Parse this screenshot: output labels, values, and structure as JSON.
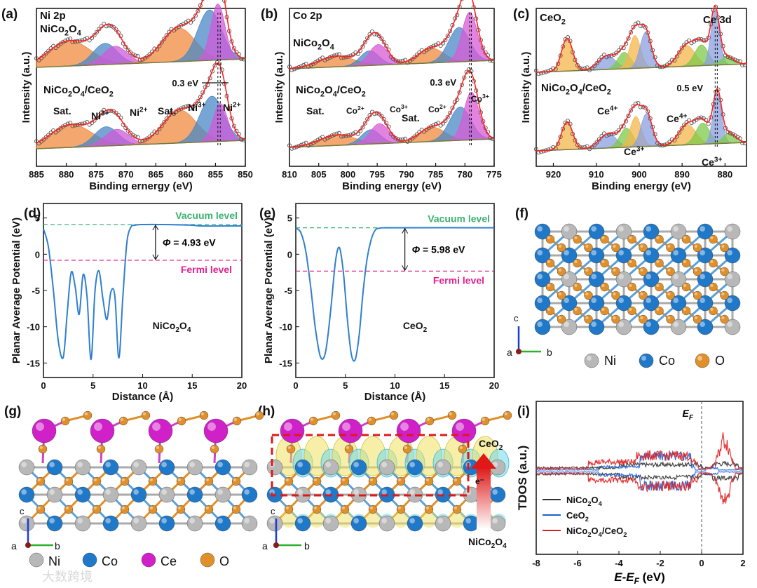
{
  "panel_labels": {
    "a": "(a)",
    "b": "(b)",
    "c": "(c)",
    "d": "(d)",
    "e": "(e)",
    "f": "(f)",
    "g": "(g)",
    "h": "(h)",
    "i": "(i)"
  },
  "colors": {
    "sat": "#f08a3e",
    "ni3": "#4a88c7",
    "ni2": "#d05ad8",
    "co3": "#d85ad5",
    "co2": "#4a88c7",
    "ce3": "#7ec94a",
    "ce4a": "#f3b64b",
    "ce4b": "#8aa0e0",
    "envelope": "#ff2020",
    "baseline": "#888888",
    "vacuum": "#3cb371",
    "fermi": "#e0208f",
    "potential": "#2f7fd0",
    "atom_ni": "#b8b8b8",
    "atom_co": "#1f78c8",
    "atom_o": "#e0902a",
    "atom_ce": "#d020c8",
    "tdos_ni": "#333333",
    "tdos_ce": "#2060d0",
    "tdos_het": "#e02020"
  },
  "chart_data": [
    {
      "id": "a",
      "type": "line",
      "header": "Ni 2p",
      "sample_top": "NiCo2O4",
      "sample_bottom": "NiCo2O4/CeO2",
      "xlabel": "Binding ernergy (eV)",
      "ylabel": "Intensity (a.u.)",
      "xlim": [
        885,
        850
      ],
      "ticks": [
        885,
        880,
        875,
        870,
        865,
        860,
        855,
        850
      ],
      "shift": "0.3 eV",
      "peaks_top": [
        {
          "pos": 879.5,
          "h": 0.45,
          "w": 3.5,
          "role": "sat"
        },
        {
          "pos": 873.5,
          "h": 0.38,
          "w": 2.0,
          "role": "ni3"
        },
        {
          "pos": 871.8,
          "h": 0.32,
          "w": 2.0,
          "role": "ni2"
        },
        {
          "pos": 861.2,
          "h": 0.6,
          "w": 2.8,
          "role": "sat"
        },
        {
          "pos": 856.0,
          "h": 0.9,
          "w": 2.0,
          "role": "ni3"
        },
        {
          "pos": 854.6,
          "h": 1.0,
          "w": 1.2,
          "role": "ni2"
        }
      ],
      "peaks_bottom": [
        {
          "pos": 879.2,
          "h": 0.45,
          "w": 3.5,
          "role": "sat"
        },
        {
          "pos": 873.3,
          "h": 0.38,
          "w": 2.0,
          "role": "ni3"
        },
        {
          "pos": 871.5,
          "h": 0.32,
          "w": 2.0,
          "role": "ni2"
        },
        {
          "pos": 861.0,
          "h": 0.65,
          "w": 2.8,
          "role": "sat"
        },
        {
          "pos": 855.6,
          "h": 0.9,
          "w": 2.0,
          "role": "ni3"
        },
        {
          "pos": 854.2,
          "h": 0.75,
          "w": 1.2,
          "role": "ni2"
        }
      ],
      "annotations": [
        {
          "text": "Sat.",
          "x": 879
        },
        {
          "text": "Ni3+",
          "x": 874
        },
        {
          "text": "Ni2+",
          "x": 869.5
        },
        {
          "text": "Sat.",
          "x": 862.5
        },
        {
          "text": "Ni3+",
          "x": 856.5
        },
        {
          "text": "Ni2+",
          "x": 853
        }
      ]
    },
    {
      "id": "b",
      "type": "line",
      "header": "Co 2p",
      "sample_top": "NiCo2O4",
      "sample_bottom": "NiCo2O4/CeO2",
      "xlabel": "Binding energy (eV)",
      "ylabel": "Intensity (a.u.)",
      "xlim": [
        810,
        775
      ],
      "ticks": [
        810,
        805,
        800,
        795,
        790,
        785,
        780,
        775
      ],
      "shift": "0.3 eV",
      "peaks_top": [
        {
          "pos": 802.0,
          "h": 0.22,
          "w": 3.0,
          "role": "sat"
        },
        {
          "pos": 796.3,
          "h": 0.3,
          "w": 1.6,
          "role": "co2"
        },
        {
          "pos": 794.8,
          "h": 0.42,
          "w": 1.6,
          "role": "co3"
        },
        {
          "pos": 785.8,
          "h": 0.3,
          "w": 2.2,
          "role": "sat"
        },
        {
          "pos": 781.0,
          "h": 0.7,
          "w": 1.8,
          "role": "co2"
        },
        {
          "pos": 779.2,
          "h": 1.0,
          "w": 1.3,
          "role": "co3"
        }
      ],
      "peaks_bottom": [
        {
          "pos": 801.8,
          "h": 0.22,
          "w": 3.0,
          "role": "sat"
        },
        {
          "pos": 796.1,
          "h": 0.3,
          "w": 1.6,
          "role": "co2"
        },
        {
          "pos": 794.6,
          "h": 0.42,
          "w": 1.6,
          "role": "co3"
        },
        {
          "pos": 785.6,
          "h": 0.3,
          "w": 2.2,
          "role": "sat"
        },
        {
          "pos": 780.8,
          "h": 0.7,
          "w": 1.8,
          "role": "co2"
        },
        {
          "pos": 778.9,
          "h": 1.0,
          "w": 1.3,
          "role": "co3"
        }
      ],
      "annotations": [
        {
          "text": "Sat.",
          "x": 804
        },
        {
          "text": "Co2+",
          "x": 796.5
        },
        {
          "text": "Co3+",
          "x": 791
        },
        {
          "text": "Sat.",
          "x": 786.5
        },
        {
          "text": "Co2+",
          "x": 782
        },
        {
          "text": "Co3+",
          "x": 776.5
        }
      ]
    },
    {
      "id": "c",
      "type": "line",
      "header": "CeO2",
      "header2": "Ce 3d",
      "sample_bottom": "NiCo2O4/CeO2",
      "xlabel": "Binding energy (eV)",
      "ylabel": "Intensity (a.u.)",
      "xlim": [
        924,
        875
      ],
      "ticks": [
        920,
        910,
        900,
        890,
        880
      ],
      "shift": "0.5 eV",
      "peaks_top": [
        {
          "pos": 916.8,
          "h": 0.6,
          "w": 1.3,
          "role": "ce4a"
        },
        {
          "pos": 907.5,
          "h": 0.25,
          "w": 2.0,
          "role": "ce4b"
        },
        {
          "pos": 903.5,
          "h": 0.3,
          "w": 1.5,
          "role": "ce3"
        },
        {
          "pos": 901.0,
          "h": 0.6,
          "w": 1.3,
          "role": "ce4a"
        },
        {
          "pos": 898.5,
          "h": 0.65,
          "w": 1.3,
          "role": "ce4b"
        },
        {
          "pos": 889.0,
          "h": 0.38,
          "w": 2.0,
          "role": "ce4a"
        },
        {
          "pos": 885.5,
          "h": 0.38,
          "w": 1.6,
          "role": "ce3"
        },
        {
          "pos": 882.3,
          "h": 1.0,
          "w": 1.0,
          "role": "ce4b"
        },
        {
          "pos": 879.5,
          "h": 0.15,
          "w": 1.5,
          "role": "ce3"
        }
      ],
      "peaks_bottom": [
        {
          "pos": 916.8,
          "h": 0.55,
          "w": 1.3,
          "role": "ce4a"
        },
        {
          "pos": 907.3,
          "h": 0.28,
          "w": 2.0,
          "role": "ce4b"
        },
        {
          "pos": 903.0,
          "h": 0.38,
          "w": 1.5,
          "role": "ce3"
        },
        {
          "pos": 900.8,
          "h": 0.6,
          "w": 1.3,
          "role": "ce4a"
        },
        {
          "pos": 898.3,
          "h": 0.65,
          "w": 1.3,
          "role": "ce4b"
        },
        {
          "pos": 888.8,
          "h": 0.4,
          "w": 2.0,
          "role": "ce4a"
        },
        {
          "pos": 885.2,
          "h": 0.42,
          "w": 1.6,
          "role": "ce3"
        },
        {
          "pos": 881.8,
          "h": 1.0,
          "w": 1.0,
          "role": "ce4b"
        },
        {
          "pos": 879.0,
          "h": 0.2,
          "w": 1.5,
          "role": "ce3"
        }
      ],
      "annotations": [
        {
          "text": "Ce4+",
          "x": 906
        },
        {
          "text": "Ce3+",
          "x": 902
        },
        {
          "text": "Ce4+",
          "x": 888
        },
        {
          "text": "Ce3+",
          "x": 879.5
        }
      ]
    },
    {
      "id": "d",
      "type": "line",
      "xlabel": "Distance (Å)",
      "ylabel": "Planar Average Potential (eV)",
      "xlim": [
        0,
        20
      ],
      "ylim": [
        -17,
        7
      ],
      "xticks": [
        0,
        5,
        10,
        15,
        20
      ],
      "yticks": [
        5,
        0,
        -5,
        -10,
        -15
      ],
      "vacuum_level": 4.1,
      "fermi_level": -0.83,
      "work_function": "Φ = 4.93 eV",
      "vacuum_label": "Vacuum level",
      "fermi_label": "Fermi level",
      "material": "NiCo2O4",
      "x": [
        0,
        0.5,
        1.0,
        1.5,
        2.0,
        2.4,
        2.8,
        3.2,
        3.6,
        4.0,
        4.4,
        4.8,
        5.2,
        5.6,
        6.0,
        6.4,
        6.8,
        7.2,
        7.6,
        8.0,
        8.4,
        8.8,
        9.2,
        10,
        12,
        15,
        16,
        20
      ],
      "y": [
        3.5,
        1.0,
        -5,
        -12,
        -14.2,
        -8,
        -2.5,
        -4.5,
        -8.3,
        -2.8,
        -6,
        -14.5,
        -5,
        -2.3,
        -6.2,
        -9,
        -5.2,
        -5.8,
        -14.3,
        -6,
        1.5,
        3.7,
        4.0,
        4.1,
        4.1,
        4.0,
        3.9,
        3.9
      ]
    },
    {
      "id": "e",
      "type": "line",
      "xlabel": "Distance (Å)",
      "ylabel": "Planar Average Potential (eV)",
      "xlim": [
        0,
        20
      ],
      "ylim": [
        -17,
        7
      ],
      "xticks": [
        0,
        5,
        10,
        15,
        20
      ],
      "yticks": [
        5,
        0,
        -5,
        -10,
        -15
      ],
      "vacuum_level": 3.65,
      "fermi_level": -2.33,
      "work_function": "Φ = 5.98 eV",
      "vacuum_label": "Vacuum level",
      "fermi_label": "Fermi level",
      "material": "CeO2",
      "x": [
        0,
        0.5,
        1.0,
        1.5,
        2.0,
        2.5,
        3.0,
        3.5,
        4.0,
        4.4,
        4.8,
        5.2,
        5.6,
        6.0,
        6.4,
        6.8,
        7.2,
        7.6,
        8.0,
        8.5,
        10,
        20
      ],
      "y": [
        3.6,
        3.0,
        0.5,
        -4.5,
        -10.5,
        -14.2,
        -13.5,
        -8,
        -1,
        0.9,
        -2.5,
        -9,
        -13.8,
        -14.5,
        -11,
        -5,
        -0.5,
        2.0,
        3.3,
        3.6,
        3.65,
        3.65
      ]
    },
    {
      "id": "i",
      "type": "line",
      "xlabel": "E-E",
      "xlabel_sub": "F",
      "xlabel_unit": " (eV)",
      "ylabel": "TDOS (a.u.)",
      "xlim": [
        -8,
        2
      ],
      "xticks": [
        -8,
        -6,
        -4,
        -2,
        0,
        2
      ],
      "ef_label": "E",
      "ef_sub": "F",
      "series": [
        {
          "name": "NiCo2O4",
          "role": "tdos_ni"
        },
        {
          "name": "CeO2",
          "role": "tdos_ce"
        },
        {
          "name": "NiCo2O4/CeO2",
          "role": "tdos_het"
        }
      ]
    }
  ],
  "structures": {
    "f": {
      "legend": [
        "Ni",
        "Co",
        "O"
      ],
      "axis_c": "c",
      "axis_a": "a",
      "axis_b": "b"
    },
    "g": {
      "legend": [
        "Ni",
        "Co",
        "Ce",
        "O"
      ],
      "axis_c": "c",
      "axis_a": "a",
      "axis_b": "b"
    },
    "h": {
      "label_top": "CeO2",
      "label_bottom": "NiCo2O4",
      "electron": "e⁻",
      "axis_c": "c",
      "axis_a": "a",
      "axis_b": "b"
    }
  },
  "watermark": "大数跨境"
}
